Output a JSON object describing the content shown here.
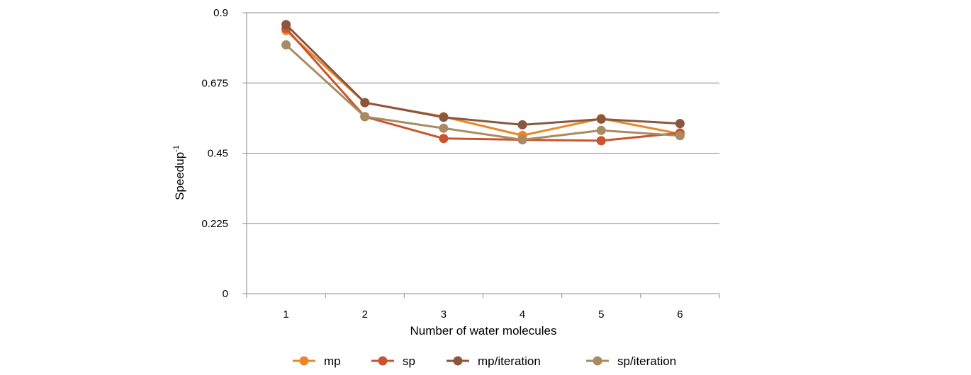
{
  "chart_data": {
    "type": "line",
    "title": "",
    "xlabel": "Number of water molecules",
    "ylabel": "Speedup",
    "ylabel_superscript": "-1",
    "x": [
      "1",
      "2",
      "3",
      "4",
      "5",
      "6"
    ],
    "ylim": [
      0,
      0.9
    ],
    "yticks": [
      "0",
      "0.225",
      "0.45",
      "0.675",
      "0.9"
    ],
    "grid": true,
    "legend_position": "bottom",
    "series": [
      {
        "name": "mp",
        "color": "#E8872A",
        "values": [
          0.843,
          0.612,
          0.567,
          0.507,
          0.561,
          0.512
        ]
      },
      {
        "name": "sp",
        "color": "#C9552E",
        "values": [
          0.85,
          0.567,
          0.497,
          0.493,
          0.49,
          0.515
        ]
      },
      {
        "name": "mp/iteration",
        "color": "#8B5640",
        "values": [
          0.862,
          0.612,
          0.565,
          0.541,
          0.559,
          0.545
        ]
      },
      {
        "name": "sp/iteration",
        "color": "#A88B63",
        "values": [
          0.797,
          0.567,
          0.53,
          0.493,
          0.523,
          0.506
        ]
      }
    ]
  }
}
